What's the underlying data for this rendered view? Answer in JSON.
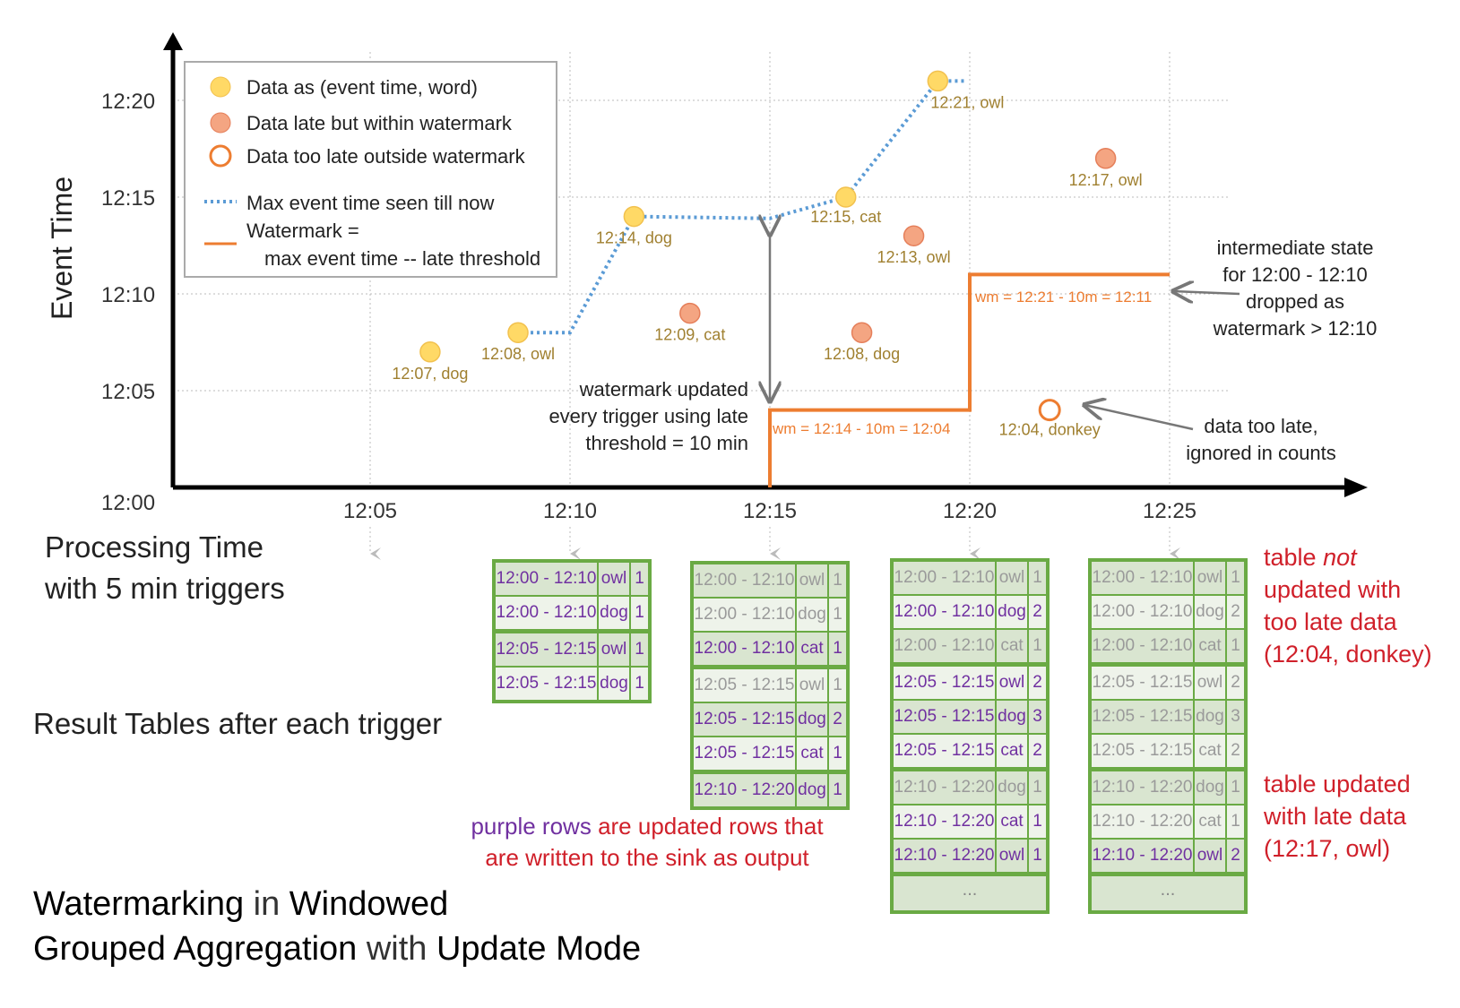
{
  "chart_data": {
    "type": "scatter",
    "ylabel": "Event Time",
    "xlabel": "Processing Time\nwith 5 min triggers",
    "x_ticks": [
      "12:05",
      "12:10",
      "12:15",
      "12:20",
      "12:25"
    ],
    "y_ticks": [
      "12:00",
      "12:05",
      "12:10",
      "12:15",
      "12:20"
    ],
    "x_range_minutes_after_1200": [
      0,
      30
    ],
    "y_range_minutes_after_1200": [
      0,
      22
    ],
    "grid": "dotted",
    "legend_position": "top-left",
    "legend": {
      "on_time": "Data as (event time, word)",
      "late": "Data late but within watermark",
      "too_late": "Data too late outside watermark",
      "max_line": "Max event time seen till now",
      "watermark_line_1": "Watermark =",
      "watermark_line_2": "max event time -- late threshold"
    },
    "points": [
      {
        "proc": 6.5,
        "event": 7,
        "label": "12:07, dog",
        "kind": "on_time"
      },
      {
        "proc": 8.7,
        "event": 8,
        "label": "12:08, owl",
        "kind": "on_time"
      },
      {
        "proc": 11.6,
        "event": 14,
        "label": "12:14, dog",
        "kind": "on_time"
      },
      {
        "proc": 13.0,
        "event": 9,
        "label": "12:09, cat",
        "kind": "late"
      },
      {
        "proc": 16.9,
        "event": 15,
        "label": "12:15, cat",
        "kind": "on_time"
      },
      {
        "proc": 17.3,
        "event": 8,
        "label": "12:08, dog",
        "kind": "late"
      },
      {
        "proc": 18.6,
        "event": 13,
        "label": "12:13, owl",
        "kind": "late"
      },
      {
        "proc": 19.2,
        "event": 21,
        "label": "12:21, owl",
        "kind": "on_time"
      },
      {
        "proc": 22.0,
        "event": 4,
        "label": "12:04, donkey",
        "kind": "too_late"
      },
      {
        "proc": 23.4,
        "event": 17,
        "label": "12:17, owl",
        "kind": "late"
      }
    ],
    "max_event_time_line": [
      [
        8.7,
        8
      ],
      [
        10,
        8
      ],
      [
        11.6,
        14
      ],
      [
        15,
        13.9
      ],
      [
        16.9,
        15
      ],
      [
        19.2,
        21
      ],
      [
        19.9,
        21
      ]
    ],
    "watermark_line": [
      [
        15,
        0
      ],
      [
        15,
        4
      ],
      [
        20,
        4
      ],
      [
        20,
        11
      ],
      [
        25,
        11
      ]
    ],
    "watermark_labels": [
      "wm = 12:14 - 10m = 12:04",
      "wm = 12:21 - 10m = 12:11"
    ],
    "annotations": {
      "watermark_updated": [
        "watermark updated",
        "every trigger using late",
        "threshold = 10 min"
      ],
      "intermediate_state": [
        "intermediate state",
        "for 12:00 - 12:10",
        "dropped as",
        "watermark > 12:10"
      ],
      "too_late": [
        "data too late,",
        "ignored in counts"
      ]
    },
    "colors": {
      "on_time": "#ffd966",
      "late": "#f4a582",
      "too_late": "#ed7d31",
      "max_line": "#5b9bd5",
      "watermark": "#ed7d31",
      "label": "#a08030",
      "arrow": "#777777"
    }
  },
  "labels": {
    "processing_time_1": "Processing Time",
    "processing_time_2": "with 5 min triggers",
    "result_tables": "Result Tables after each trigger",
    "title": {
      "w1": "Watermarking",
      "w2": " in ",
      "w3": "Windowed",
      "w4": "Grouped Aggregation",
      "w5": " with ",
      "w6": "Update Mode"
    },
    "purple_note": {
      "a": "purple rows",
      "b": " are updated rows that",
      "c": "are written to the sink as output"
    },
    "not_updated": {
      "a": "table ",
      "b": "not",
      "c": "updated with",
      "d": "too late data",
      "e": "(12:04, donkey)"
    },
    "updated": [
      "table updated",
      "with late data",
      "(12:17, owl)"
    ]
  },
  "tables": [
    {
      "trigger": "12:10",
      "rows": [
        [
          "12:00 - 12:10",
          "owl",
          "1",
          true,
          false
        ],
        [
          "12:00 - 12:10",
          "dog",
          "1",
          true,
          false
        ],
        [
          "12:05 - 12:15",
          "owl",
          "1",
          true,
          true
        ],
        [
          "12:05 - 12:15",
          "dog",
          "1",
          true,
          false
        ]
      ],
      "ellipsis": ""
    },
    {
      "trigger": "12:15",
      "rows": [
        [
          "12:00 - 12:10",
          "owl",
          "1",
          false,
          false
        ],
        [
          "12:00 - 12:10",
          "dog",
          "1",
          false,
          false
        ],
        [
          "12:00 - 12:10",
          "cat",
          "1",
          true,
          false
        ],
        [
          "12:05 - 12:15",
          "owl",
          "1",
          false,
          true
        ],
        [
          "12:05 - 12:15",
          "dog",
          "2",
          true,
          false
        ],
        [
          "12:05 - 12:15",
          "cat",
          "1",
          true,
          false
        ],
        [
          "12:10 - 12:20",
          "dog",
          "1",
          true,
          true
        ]
      ],
      "ellipsis": ""
    },
    {
      "trigger": "12:20",
      "rows": [
        [
          "12:00 - 12:10",
          "owl",
          "1",
          false,
          false
        ],
        [
          "12:00 - 12:10",
          "dog",
          "2",
          true,
          false
        ],
        [
          "12:00 - 12:10",
          "cat",
          "1",
          false,
          false
        ],
        [
          "12:05 - 12:15",
          "owl",
          "2",
          true,
          true
        ],
        [
          "12:05 - 12:15",
          "dog",
          "3",
          true,
          false
        ],
        [
          "12:05 - 12:15",
          "cat",
          "2",
          true,
          false
        ],
        [
          "12:10 - 12:20",
          "dog",
          "1",
          false,
          true
        ],
        [
          "12:10 - 12:20",
          "cat",
          "1",
          true,
          false
        ],
        [
          "12:10 - 12:20",
          "owl",
          "1",
          true,
          false
        ]
      ],
      "ellipsis": "..."
    },
    {
      "trigger": "12:25",
      "rows": [
        [
          "12:00 - 12:10",
          "owl",
          "1",
          false,
          false
        ],
        [
          "12:00 - 12:10",
          "dog",
          "2",
          false,
          false
        ],
        [
          "12:00 - 12:10",
          "cat",
          "1",
          false,
          false
        ],
        [
          "12:05 - 12:15",
          "owl",
          "2",
          false,
          true
        ],
        [
          "12:05 - 12:15",
          "dog",
          "3",
          false,
          false
        ],
        [
          "12:05 - 12:15",
          "cat",
          "2",
          false,
          false
        ],
        [
          "12:10 - 12:20",
          "dog",
          "1",
          false,
          true
        ],
        [
          "12:10 - 12:20",
          "cat",
          "1",
          false,
          false
        ],
        [
          "12:10 - 12:20",
          "owl",
          "2",
          true,
          false
        ]
      ],
      "ellipsis": "..."
    }
  ]
}
